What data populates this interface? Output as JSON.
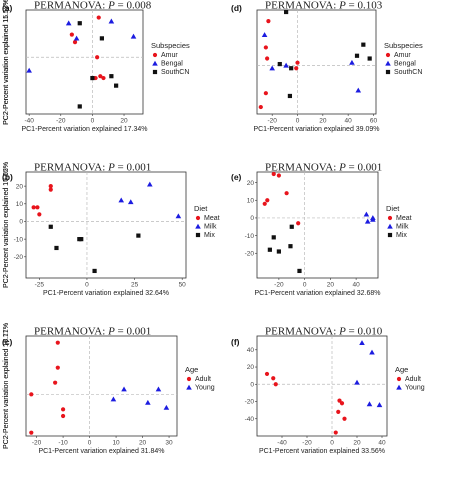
{
  "colors": {
    "red": "#e8141c",
    "blue": "#1c1ce0",
    "black": "#111111",
    "frame": "#333333",
    "zero_line": "#bbbbbb"
  },
  "chart_data": [
    {
      "type": "scatter",
      "panel_label": "(a)",
      "title_prefix": "PERMANOVA: ",
      "title_p": "P",
      "title_value": " = 0.008",
      "xlabel": "PC1-Percent variation explained 17.34%",
      "ylabel": "PC2-Percent variation explained 15.18%",
      "xlim": [
        -42,
        32
      ],
      "ylim": [
        -30,
        25
      ],
      "xticks": [
        -40,
        -20,
        0,
        20
      ],
      "yticks": [
        -30,
        -20,
        -10,
        0,
        10,
        20
      ],
      "show_yticks": false,
      "legend_title": "Subspecies",
      "legend_placement": "right",
      "grid": false,
      "series": [
        {
          "name": "Amur",
          "marker": "circle",
          "color": "#e8141c",
          "points": [
            [
              -13,
              12
            ],
            [
              4,
              21
            ],
            [
              -11,
              8
            ],
            [
              3,
              0
            ],
            [
              5,
              -10
            ],
            [
              2,
              -11
            ],
            [
              7,
              -11
            ]
          ]
        },
        {
          "name": "Bengal",
          "marker": "triangle",
          "color": "#1c1ce0",
          "points": [
            [
              -40,
              -7
            ],
            [
              -15,
              18
            ],
            [
              -10,
              10
            ],
            [
              12,
              19
            ],
            [
              26,
              11
            ]
          ]
        },
        {
          "name": "SouthCN",
          "marker": "square",
          "color": "#111111",
          "points": [
            [
              -8,
              18
            ],
            [
              6,
              10
            ],
            [
              0,
              -11
            ],
            [
              12,
              -10
            ],
            [
              15,
              -15
            ],
            [
              -8,
              -26
            ]
          ]
        }
      ]
    },
    {
      "type": "scatter",
      "panel_label": "(d)",
      "title_prefix": "PERMANOVA: ",
      "title_p": "P",
      "title_value": " = 0.103",
      "xlabel": "PC1-Percent variation explained 39.09%",
      "ylabel": "PC2-Percent variation explained 11.57%",
      "xlim": [
        -32,
        62
      ],
      "ylim": [
        -35,
        40
      ],
      "xticks": [
        -20,
        0,
        20,
        40,
        60
      ],
      "yticks": [
        -20,
        -10,
        0,
        10,
        20,
        30
      ],
      "show_yticks": false,
      "legend_title": "Subspecies",
      "legend_placement": "right",
      "grid": false,
      "series": [
        {
          "name": "Amur",
          "marker": "circle",
          "color": "#e8141c",
          "points": [
            [
              -23,
              32
            ],
            [
              -25,
              13
            ],
            [
              -24,
              5
            ],
            [
              0,
              2
            ],
            [
              -1,
              -2
            ],
            [
              -25,
              -20
            ],
            [
              -29,
              -30
            ]
          ]
        },
        {
          "name": "Bengal",
          "marker": "triangle",
          "color": "#1c1ce0",
          "points": [
            [
              -26,
              22
            ],
            [
              -20,
              -2
            ],
            [
              -9,
              0
            ],
            [
              43,
              2
            ],
            [
              48,
              -18
            ]
          ]
        },
        {
          "name": "SouthCN",
          "marker": "square",
          "color": "#111111",
          "points": [
            [
              -9,
              40
            ],
            [
              -14,
              1
            ],
            [
              -5,
              -2
            ],
            [
              47,
              7
            ],
            [
              52,
              15
            ],
            [
              57,
              5
            ],
            [
              -6,
              -22
            ]
          ]
        }
      ]
    },
    {
      "type": "scatter",
      "panel_label": "(b)",
      "title_prefix": "PERMANOVA: ",
      "title_p": "P",
      "title_value": " = 0.001",
      "xlabel": "PC1-Percent variation explained 32.64%",
      "ylabel": "PC2-Percent variation explained 16.05%",
      "xlim": [
        -32,
        52
      ],
      "ylim": [
        -32,
        28
      ],
      "xticks": [
        -25,
        0,
        25,
        50
      ],
      "yticks": [
        -20,
        -10,
        0,
        10,
        20
      ],
      "show_yticks": true,
      "legend_title": "Diet",
      "legend_placement": "right",
      "grid": false,
      "series": [
        {
          "name": "Meat",
          "marker": "circle",
          "color": "#e8141c",
          "points": [
            [
              -19,
              20
            ],
            [
              -19,
              18
            ],
            [
              -28,
              8
            ],
            [
              -26,
              8
            ],
            [
              -25,
              4
            ]
          ]
        },
        {
          "name": "Milk",
          "marker": "triangle",
          "color": "#1c1ce0",
          "points": [
            [
              33,
              21
            ],
            [
              18,
              12
            ],
            [
              23,
              11
            ],
            [
              48,
              3
            ]
          ]
        },
        {
          "name": "Mix",
          "marker": "square",
          "color": "#111111",
          "points": [
            [
              -19,
              -3
            ],
            [
              -16,
              -15
            ],
            [
              -3,
              -10
            ],
            [
              -4,
              -10
            ],
            [
              27,
              -8
            ],
            [
              4,
              -28
            ]
          ]
        }
      ]
    },
    {
      "type": "scatter",
      "panel_label": "(e)",
      "title_prefix": "PERMANOVA: ",
      "title_p": "P",
      "title_value": " = 0.001",
      "xlabel": "PC1-Percent variation explained 32.68%",
      "ylabel": "PC2-Percent variation explained 17.52%",
      "xlim": [
        -37,
        57
      ],
      "ylim": [
        -34,
        26
      ],
      "xticks": [
        -20,
        0,
        20,
        40
      ],
      "yticks": [
        -20,
        -10,
        0,
        10,
        20
      ],
      "show_yticks": true,
      "legend_title": "Diet",
      "legend_placement": "right",
      "grid": false,
      "series": [
        {
          "name": "Meat",
          "marker": "circle",
          "color": "#e8141c",
          "points": [
            [
              -24,
              25
            ],
            [
              -20,
              24
            ],
            [
              -29,
              10
            ],
            [
              -31,
              8
            ],
            [
              -14,
              14
            ],
            [
              -5,
              -3
            ]
          ]
        },
        {
          "name": "Milk",
          "marker": "triangle",
          "color": "#1c1ce0",
          "points": [
            [
              48,
              2
            ],
            [
              53,
              0
            ],
            [
              53,
              -1
            ],
            [
              49,
              -2
            ]
          ]
        },
        {
          "name": "Mix",
          "marker": "square",
          "color": "#111111",
          "points": [
            [
              -10,
              -5
            ],
            [
              -24,
              -11
            ],
            [
              -27,
              -18
            ],
            [
              -20,
              -19
            ],
            [
              -11,
              -16
            ],
            [
              -4,
              -30
            ]
          ]
        }
      ]
    },
    {
      "type": "scatter",
      "panel_label": "(c)",
      "title_prefix": "PERMANOVA: ",
      "title_p": "P",
      "title_value": " = 0.001",
      "xlabel": "PC1-Percent variation explained 31.84%",
      "ylabel": "PC2-Percent variation explained 15.71%",
      "xlim": [
        -24,
        33
      ],
      "ylim": [
        -25,
        35
      ],
      "xticks": [
        -20,
        -10,
        0,
        10,
        20,
        30
      ],
      "yticks": [
        -20,
        -10,
        0,
        10,
        20,
        30
      ],
      "show_yticks": false,
      "legend_title": "Age",
      "legend_placement": "right",
      "grid": false,
      "series": [
        {
          "name": "Adult",
          "marker": "circle",
          "color": "#e8141c",
          "points": [
            [
              -12,
              31
            ],
            [
              -12,
              16
            ],
            [
              -13,
              7
            ],
            [
              -22,
              0
            ],
            [
              -10,
              -9
            ],
            [
              -10,
              -13
            ],
            [
              -22,
              -23
            ]
          ]
        },
        {
          "name": "Young",
          "marker": "triangle",
          "color": "#1c1ce0",
          "points": [
            [
              13,
              3
            ],
            [
              26,
              3
            ],
            [
              9,
              -3
            ],
            [
              22,
              -5
            ],
            [
              29,
              -8
            ]
          ]
        }
      ]
    },
    {
      "type": "scatter",
      "panel_label": "(f)",
      "title_prefix": "PERMANOVA: ",
      "title_p": "P",
      "title_value": " = 0.010",
      "xlabel": "PC1-Percent variation explained 33.56%",
      "ylabel": "PC2-Percent variation explained 18.17%",
      "xlim": [
        -60,
        44
      ],
      "ylim": [
        -60,
        56
      ],
      "xticks": [
        -40,
        -20,
        0,
        20,
        40
      ],
      "yticks": [
        -40,
        -20,
        0,
        20,
        40
      ],
      "show_yticks": true,
      "legend_title": "Age",
      "legend_placement": "right",
      "grid": false,
      "series": [
        {
          "name": "Adult",
          "marker": "circle",
          "color": "#e8141c",
          "points": [
            [
              -52,
              12
            ],
            [
              -47,
              7
            ],
            [
              -45,
              0
            ],
            [
              6,
              -19
            ],
            [
              8,
              -22
            ],
            [
              5,
              -32
            ],
            [
              10,
              -40
            ],
            [
              3,
              -56
            ]
          ]
        },
        {
          "name": "Young",
          "marker": "triangle",
          "color": "#1c1ce0",
          "points": [
            [
              24,
              48
            ],
            [
              32,
              37
            ],
            [
              20,
              2
            ],
            [
              30,
              -23
            ],
            [
              38,
              -24
            ]
          ]
        }
      ]
    }
  ]
}
